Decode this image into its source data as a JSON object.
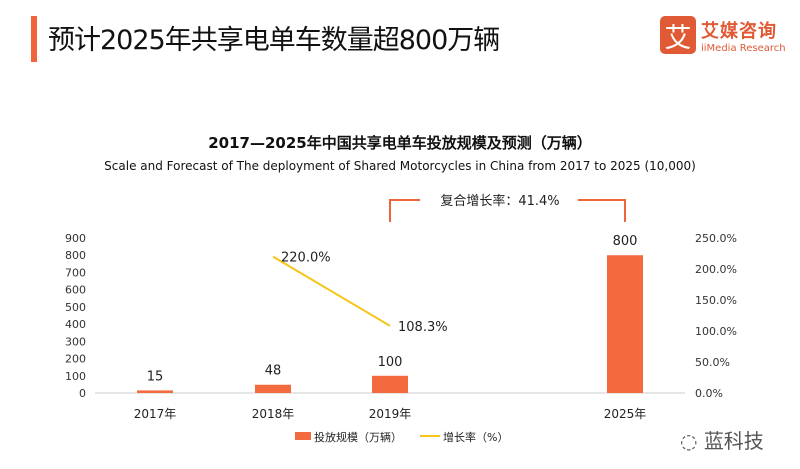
{
  "header": {
    "title": "预计2025年共享电单车数量超800万辆"
  },
  "logo": {
    "cn": "艾媒咨询",
    "en": "iiMedia Research",
    "mark": "艾"
  },
  "watermark": {
    "text": "蓝科技",
    "icon": "wechat-icon"
  },
  "colors": {
    "bar": "#f26a3d",
    "line": "#f5c518",
    "accent": "#f0643c"
  },
  "chart_data": {
    "type": "bar+line",
    "title": "2017—2025年中国共享电单车投放规模及预测（万辆）",
    "subtitle": "Scale and Forecast of The deployment of Shared Motorcycles in China from 2017 to 2025 (10,000)",
    "categories": [
      "2017年",
      "2018年",
      "2019年",
      "2025年"
    ],
    "series": [
      {
        "name": "投放规模（万辆）",
        "type": "bar",
        "axis": "left",
        "values": [
          15,
          48,
          100,
          800
        ],
        "labels": [
          "15",
          "48",
          "100",
          "800"
        ]
      },
      {
        "name": "增长率（%）",
        "type": "line",
        "axis": "right",
        "values": [
          null,
          220.0,
          108.3,
          null
        ],
        "labels": [
          "",
          "220.0%",
          "108.3%",
          ""
        ]
      }
    ],
    "left_axis": {
      "ylim": [
        0,
        900
      ],
      "ticks": [
        "0",
        "100",
        "200",
        "300",
        "400",
        "500",
        "600",
        "700",
        "800",
        "900"
      ]
    },
    "right_axis": {
      "ylim": [
        0,
        250
      ],
      "ticks": [
        "0.0%",
        "50.0%",
        "100.0%",
        "150.0%",
        "200.0%",
        "250.0%"
      ]
    },
    "annotation": "复合增长率：41.4%",
    "legend": "bottom",
    "grid": false
  }
}
